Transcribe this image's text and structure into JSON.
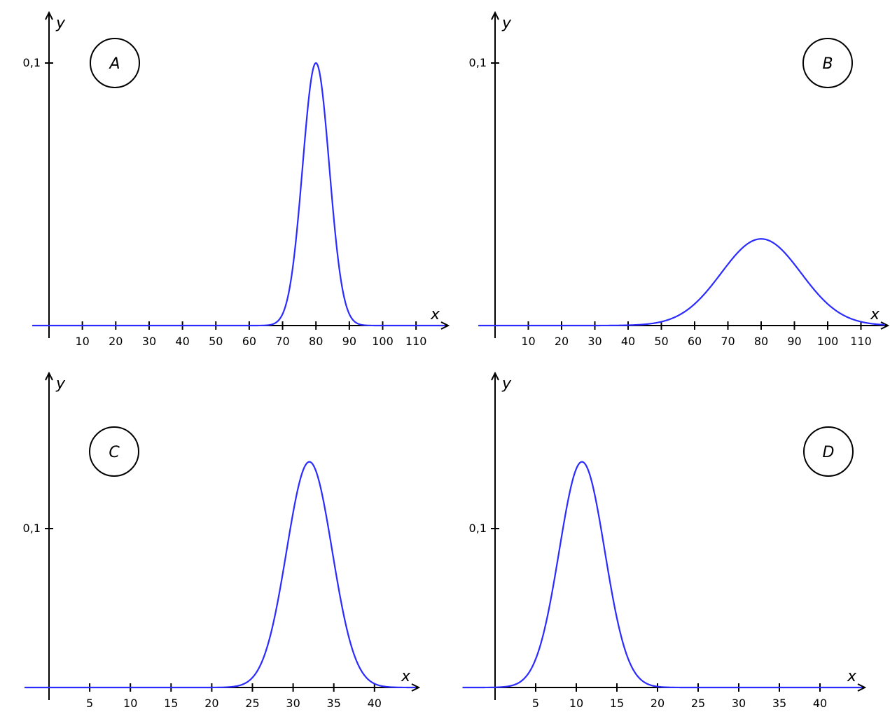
{
  "chart_data": [
    {
      "type": "line",
      "label": "A",
      "xlabel": "x",
      "ylabel": "y",
      "xlim": [
        -5,
        122
      ],
      "ylim": [
        0,
        0.12
      ],
      "x_ticks": [
        10,
        20,
        30,
        40,
        50,
        60,
        70,
        80,
        90,
        100,
        110
      ],
      "y_ticks": [
        {
          "value": 0.1,
          "label": "0,1"
        }
      ],
      "series": [
        {
          "distribution": "normal",
          "mean": 80,
          "std_dev": 4,
          "peak_y": 0.1
        }
      ]
    },
    {
      "type": "line",
      "label": "B",
      "xlabel": "x",
      "ylabel": "y",
      "xlim": [
        -5,
        120
      ],
      "ylim": [
        0,
        0.12
      ],
      "x_ticks": [
        10,
        20,
        30,
        40,
        50,
        60,
        70,
        80,
        90,
        100,
        110
      ],
      "y_ticks": [
        {
          "value": 0.1,
          "label": "0,1"
        }
      ],
      "series": [
        {
          "distribution": "normal",
          "mean": 80,
          "std_dev": 12,
          "peak_y": 0.033
        }
      ]
    },
    {
      "type": "line",
      "label": "C",
      "xlabel": "x",
      "ylabel": "y",
      "xlim": [
        -3,
        45
      ],
      "ylim": [
        0,
        0.16
      ],
      "x_ticks": [
        5,
        10,
        15,
        20,
        25,
        30,
        35,
        40
      ],
      "y_ticks": [
        {
          "value": 0.1,
          "label": "0,1"
        }
      ],
      "series": [
        {
          "distribution": "normal",
          "mean": 32,
          "std_dev": 2.8,
          "peak_y": 0.142
        }
      ]
    },
    {
      "type": "line",
      "label": "D",
      "xlabel": "x",
      "ylabel": "y",
      "xlim": [
        -4,
        45
      ],
      "ylim": [
        0,
        0.16
      ],
      "x_ticks": [
        5,
        10,
        15,
        20,
        25,
        30,
        35,
        40
      ],
      "y_ticks": [
        {
          "value": 0.1,
          "label": "0,1"
        }
      ],
      "series": [
        {
          "distribution": "normal",
          "mean": 10.7,
          "std_dev": 2.8,
          "peak_y": 0.142
        }
      ]
    }
  ],
  "colors": {
    "curve": "#2b2bff",
    "axis": "#000000"
  }
}
